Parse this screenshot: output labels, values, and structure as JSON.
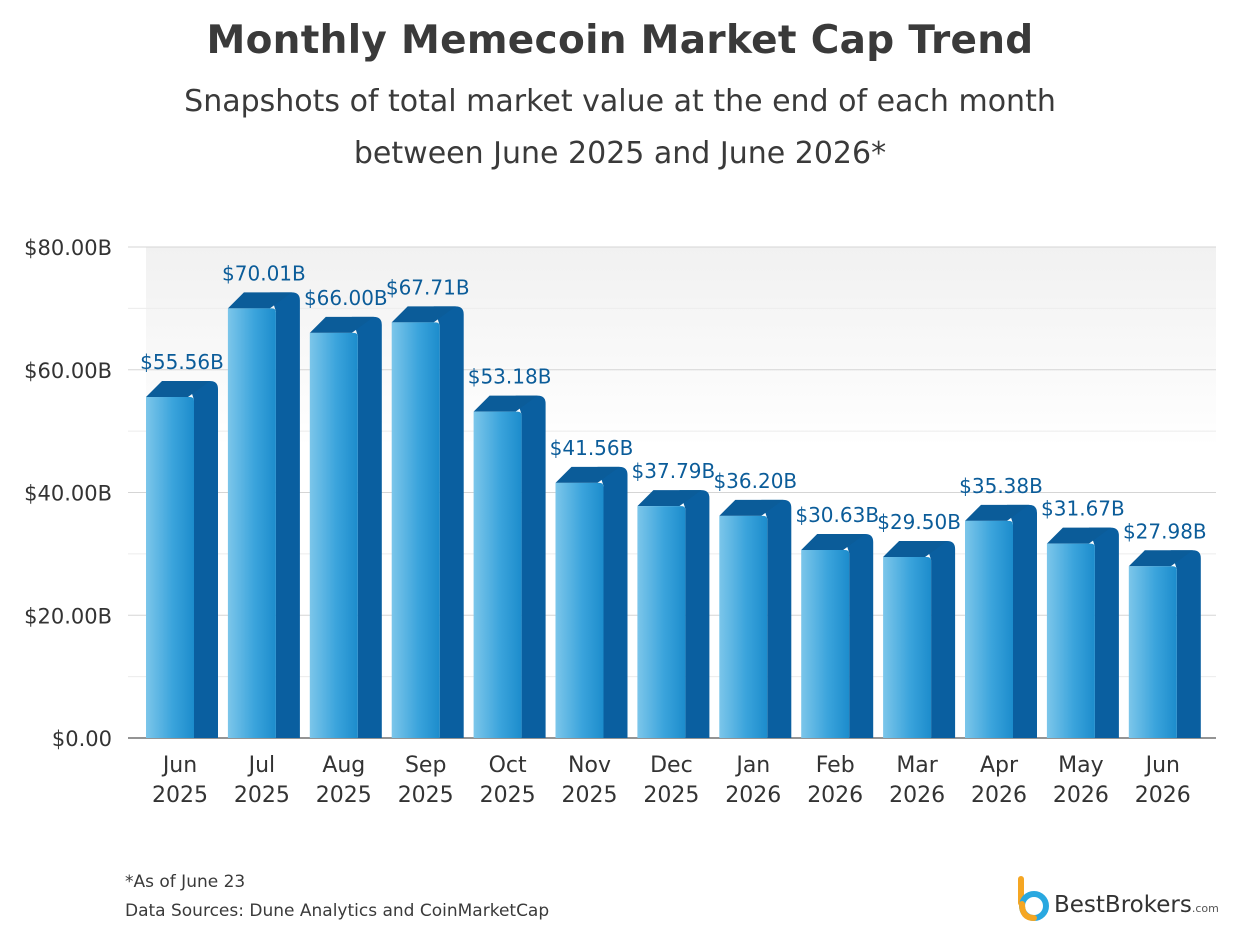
{
  "header": {
    "title": "Monthly Memecoin Market Cap Trend",
    "subtitle_line1": "Snapshots of total market value at the end of each month",
    "subtitle_line2": "between June 2025 and June 2026*"
  },
  "footer": {
    "note": "*As of June 23",
    "sources": "Data Sources: Dune Analytics and CoinMarketCap"
  },
  "brand": {
    "name": "BestBrokers",
    "suffix": ".com",
    "logo_icon": "bestbrokers-logo-icon"
  },
  "colors": {
    "bar_front_light": "#6cbde6",
    "bar_front_dark": "#1f8fcf",
    "bar_side": "#0a5fa0",
    "bar_top": "#0b5c99",
    "label": "#0b5c99",
    "grid": "#d5d5d5",
    "axis": "#555555"
  },
  "chart_data": {
    "type": "bar",
    "categories": [
      [
        "Jun",
        "2025"
      ],
      [
        "Jul",
        "2025"
      ],
      [
        "Aug",
        "2025"
      ],
      [
        "Sep",
        "2025"
      ],
      [
        "Oct",
        "2025"
      ],
      [
        "Nov",
        "2025"
      ],
      [
        "Dec",
        "2025"
      ],
      [
        "Jan",
        "2026"
      ],
      [
        "Feb",
        "2026"
      ],
      [
        "Mar",
        "2026"
      ],
      [
        "Apr",
        "2026"
      ],
      [
        "May",
        "2026"
      ],
      [
        "Jun",
        "2026"
      ]
    ],
    "values": [
      55.56,
      70.01,
      66.0,
      67.71,
      53.18,
      41.56,
      37.79,
      36.2,
      30.63,
      29.5,
      35.38,
      31.67,
      27.98
    ],
    "data_labels": [
      "$55.56B",
      "$70.01B",
      "$66.00B",
      "$67.71B",
      "$53.18B",
      "$41.56B",
      "$37.79B",
      "$36.20B",
      "$30.63B",
      "$29.50B",
      "$35.38B",
      "$31.67B",
      "$27.98B"
    ],
    "y_ticks": [
      0,
      20,
      40,
      60,
      80
    ],
    "y_tick_labels": [
      "$0.00",
      "$20.00B",
      "$40.00B",
      "$60.00B",
      "$80.00B"
    ],
    "ylim": [
      0,
      80
    ],
    "xlabel": "",
    "ylabel": "",
    "grid": true,
    "legend": "none"
  }
}
